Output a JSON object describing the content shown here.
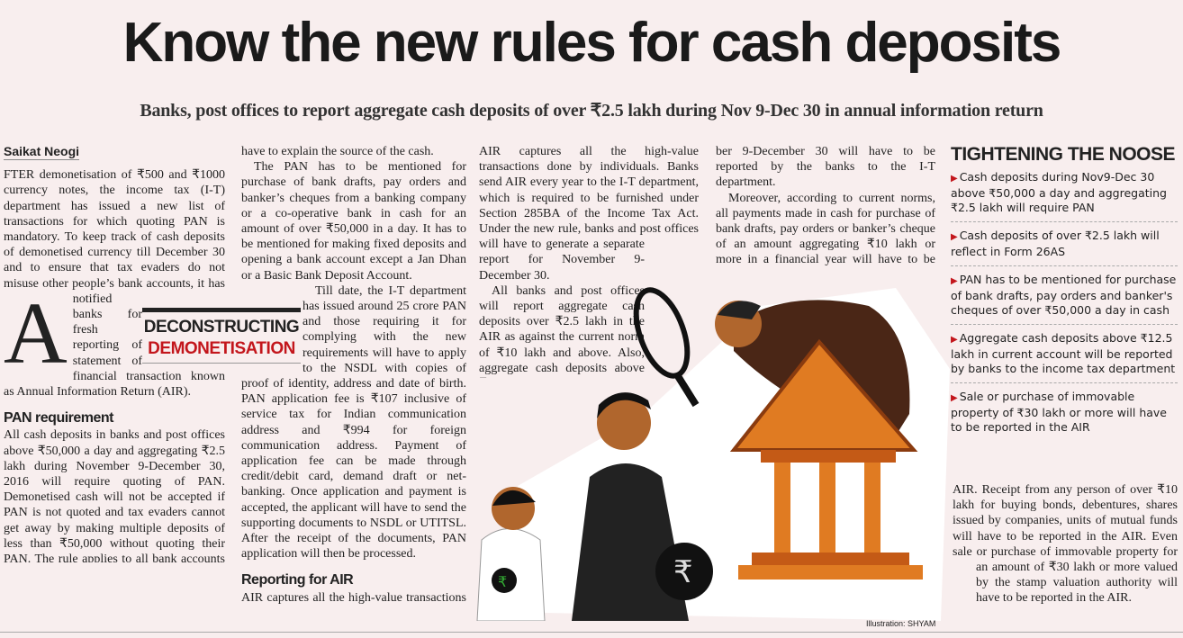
{
  "headline": "Know the new rules for cash deposits",
  "subheadline": "Banks, post offices to report aggregate cash deposits of over ₹2.5 lakh during Nov 9-Dec 30 in annual information return",
  "byline": "Saikat Neogi",
  "section_box": {
    "line1": "DECONSTRUCTING",
    "line2": "DEMONETISATION"
  },
  "body": {
    "dropcap": "A",
    "p1": "FTER demonetisation of ₹500 and ₹1000 currency notes, the income tax (I-T) department has issued a new list of transactions for which quoting PAN is mandatory. To keep track of cash deposits of demonetised currency till December 30 and to ensure that tax evaders do not misuse other people’s bank accounts, it has notified banks for fresh reporting of statement of financial transaction known as Annual Information Return (AIR).",
    "h_pan": "PAN requirement",
    "p2": "All cash deposits in banks and post offices above ₹50,000 a day and aggregating ₹2.5 lakh during November 9-December 30, 2016 will require quoting of PAN. Demonetised cash will not be accepted if PAN is not quoted and tax evaders cannot get away by making multiple deposits of less than ₹50,000 without quoting their PAN. The rule applies to all bank accounts of the individual. Cash deposits of over ₹2.5 lakh will reflect in Form 26AS and the account holder will have to explain the source of the cash.",
    "p3": "The PAN has to be mentioned for purchase of bank drafts, pay orders and banker’s cheques from a banking company or a co-operative bank in cash for an amount of over ₹50,000 in a day. It has to be mentioned for making fixed deposits and opening a bank account except a Jan Dhan or a Basic Bank Deposit Account.",
    "p4": "Till date, the I-T department has issued around 25 crore PAN and those requiring it for complying with the new requirements will have to apply to the NSDL with copies of proof of identity, address and date of birth. PAN application fee is ₹107 inclusive of service tax for Indian communication address and ₹994 for foreign communication address. Payment of application fee can be made through credit/debit card, demand draft or net-banking. Once application and payment is accepted, the applicant will have to send the supporting documents to NSDL or UTITSL. After the receipt of the documents, PAN application will then be processed.",
    "h_air": "Reporting for AIR",
    "p5": "AIR captures all the high-value transactions done by individuals. Banks send AIR every year to the I-T department, which is required to be furnished under Section 285BA of the Income Tax Act. Under the new rule, banks and post offices will have to generate a separate report for November 9-December 30.",
    "p6": "All banks and post offices will report aggregate cash deposits over ₹2.5 lakh in the AIR as against the current norm of ₹10 lakh and above. Also, aggregate cash deposits above ₹12.5 lakh in current account during November 9-December 30 will have to be reported by the banks to the I-T department.",
    "p7": "Moreover, according to current norms, all payments made in cash for purchase of bank drafts, pay orders or banker’s cheque of an amount aggregating ₹10 lakh or more in a financial year will have to be reported by banks in the",
    "p8": "AIR. Receipt from any person of over ₹10 lakh for buying bonds, debentures, shares issued by companies, units of mutual funds will have to be reported in the AIR. Even sale or purchase of immovable property for an amount of ₹30 lakh or more valued by the stamp valuation authority will have to be reported in the AIR."
  },
  "sidebar": {
    "title": "TIGHTENING THE NOOSE",
    "items": [
      "Cash deposits during Nov9-Dec 30 above ₹50,000 a day and aggregating ₹2.5 lakh will require PAN",
      "Cash deposits of over ₹2.5 lakh will reflect in Form 26AS",
      "PAN has to be mentioned for purchase of bank drafts, pay orders and banker's cheques of over ₹50,000 a day in cash",
      "Aggregate cash deposits above ₹12.5 lakh in current account will be reported by banks to the income tax department",
      "Sale or purchase of immovable property of ₹30 lakh or more will have to be reported in the AIR"
    ]
  },
  "caption": "Illustration: SHYAM",
  "colors": {
    "accent_red": "#c3161c",
    "background": "#f8eeee",
    "bank_orange": "#e07b22",
    "suit_brown": "#4a2616"
  }
}
